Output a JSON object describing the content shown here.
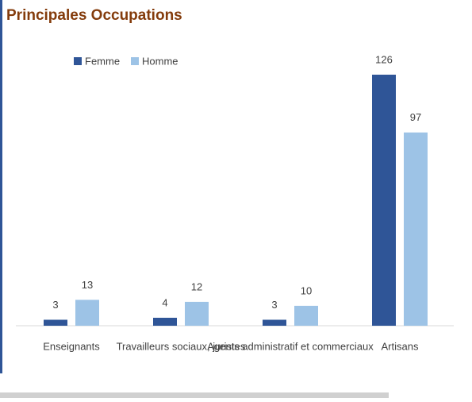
{
  "chart_data": {
    "type": "bar",
    "title": "Principales Occupations",
    "categories": [
      "Enseignants",
      "Travailleurs sociaux, juristes",
      "Agents administratif et commerciaux",
      "Artisans"
    ],
    "series": [
      {
        "name": "Femme",
        "color": "#2f5597",
        "values": [
          3,
          4,
          3,
          126
        ]
      },
      {
        "name": "Homme",
        "color": "#9dc3e6",
        "values": [
          13,
          12,
          10,
          97
        ]
      }
    ],
    "legend": "top-left"
  }
}
